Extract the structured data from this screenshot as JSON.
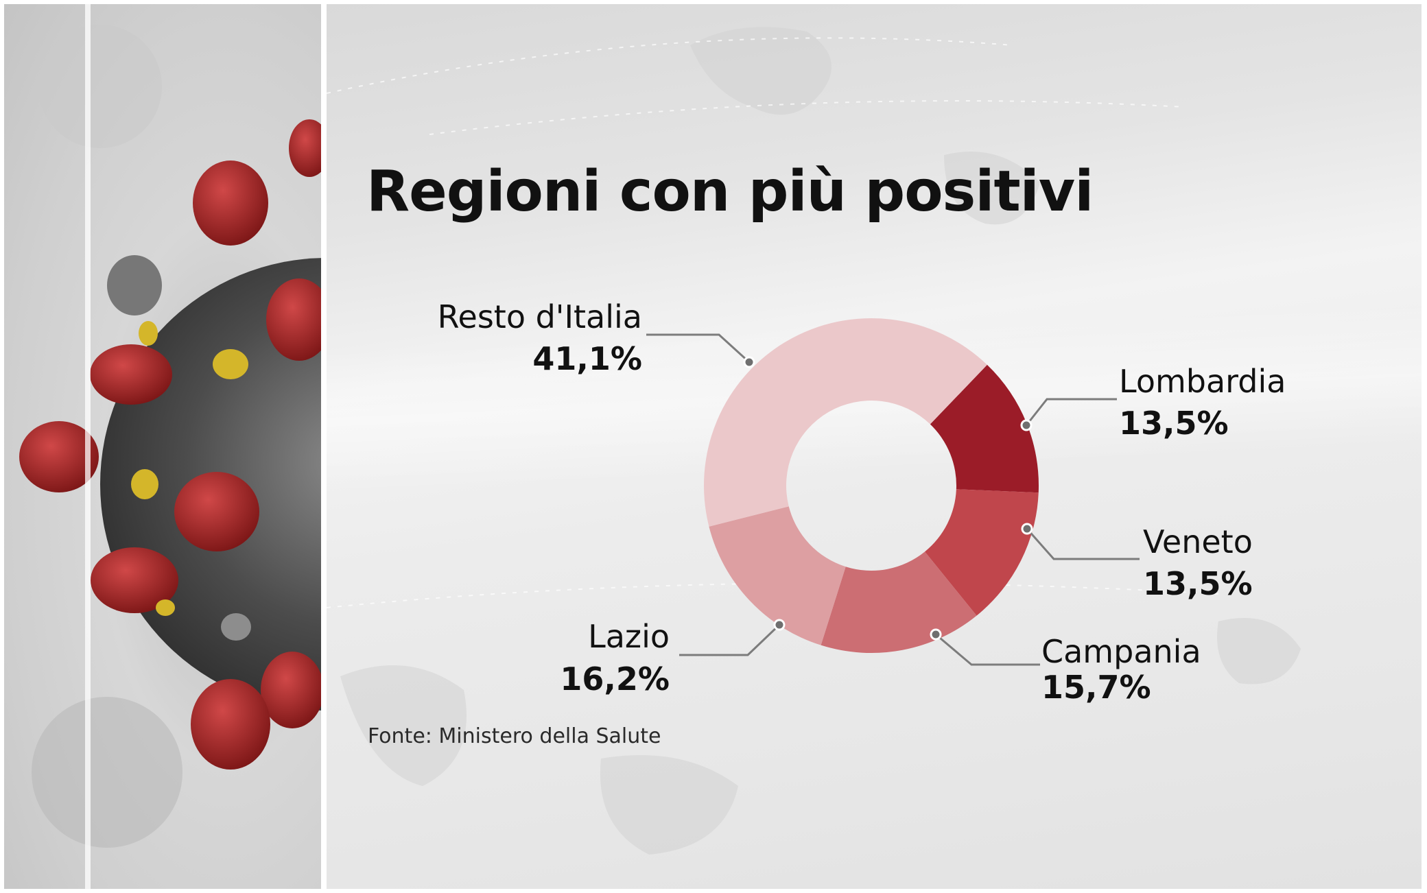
{
  "title": "Regioni con più positivi",
  "source": "Fonte: Ministero della Salute",
  "chart_data": {
    "type": "pie",
    "donut": true,
    "title": "Regioni con più positivi",
    "slices": [
      {
        "label": "Lombardia",
        "value": 13.5,
        "display": "13,5%",
        "color": "#9b1c28"
      },
      {
        "label": "Veneto",
        "value": 13.5,
        "display": "13,5%",
        "color": "#c0464c"
      },
      {
        "label": "Campania",
        "value": 15.7,
        "display": "15,7%",
        "color": "#cc6e73"
      },
      {
        "label": "Lazio",
        "value": 16.2,
        "display": "16,2%",
        "color": "#dd9fa2"
      },
      {
        "label": "Resto d'Italia",
        "value": 41.1,
        "display": "41,1%",
        "color": "#ebc8ca"
      }
    ],
    "legend": "none"
  }
}
